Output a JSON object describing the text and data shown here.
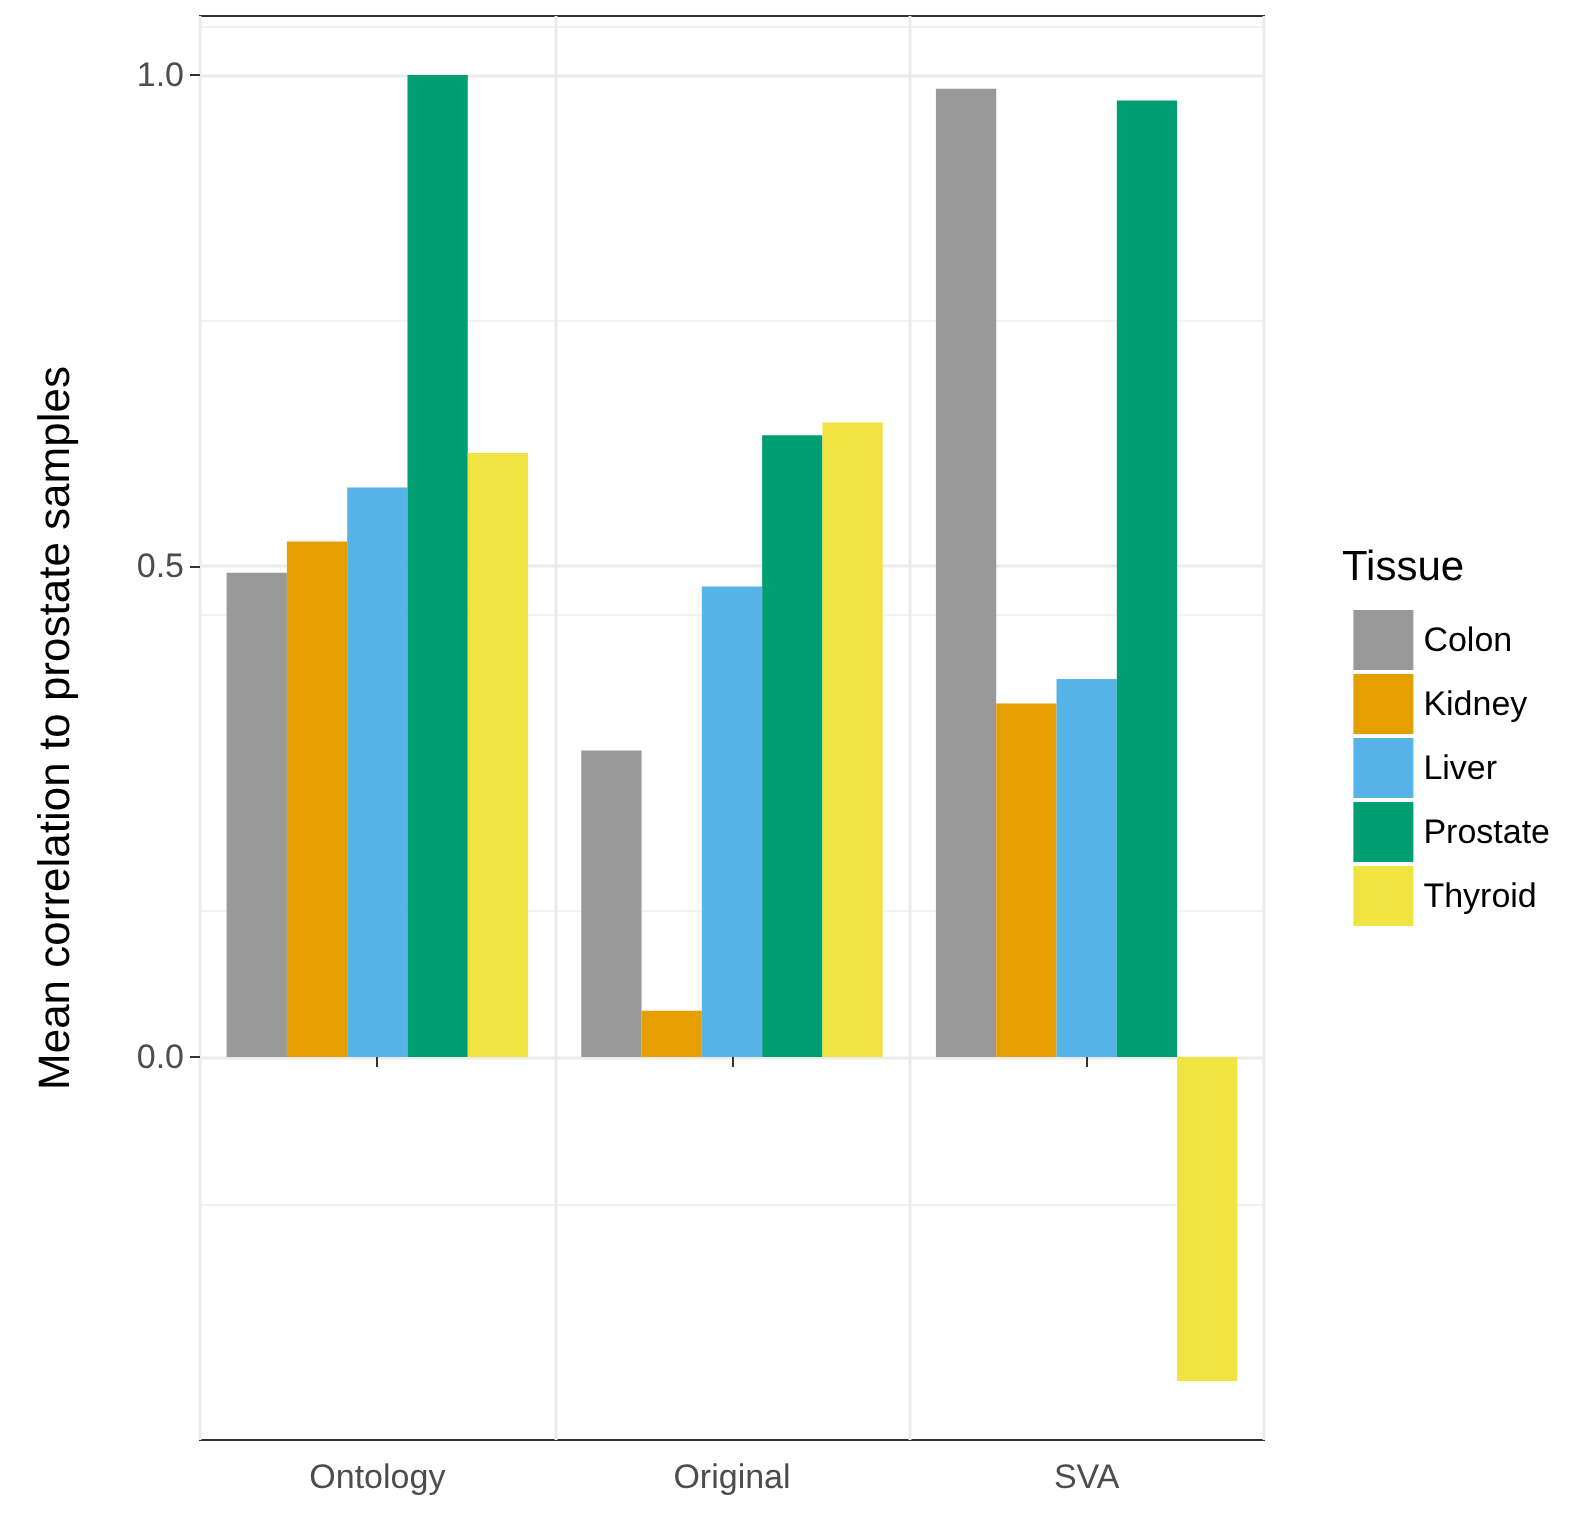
{
  "chart_data": {
    "type": "bar",
    "ylabel": "Mean correlation to prostate samples",
    "legend_title": "Tissue",
    "categories": [
      "Ontology",
      "Original",
      "SVA"
    ],
    "series": [
      {
        "name": "Colon",
        "color": "#999999",
        "values": [
          0.493,
          0.312,
          0.986
        ]
      },
      {
        "name": "Kidney",
        "color": "#e69f00",
        "values": [
          0.525,
          0.047,
          0.36
        ]
      },
      {
        "name": "Liver",
        "color": "#56b4e9",
        "values": [
          0.58,
          0.479,
          0.385
        ]
      },
      {
        "name": "Prostate",
        "color": "#009e73",
        "values": [
          1.0,
          0.633,
          0.974
        ]
      },
      {
        "name": "Thyroid",
        "color": "#f0e442",
        "values": [
          0.615,
          0.646,
          -0.33
        ]
      }
    ],
    "ylim": [
      -0.39,
      1.06
    ],
    "yticks": [
      {
        "value": 0,
        "label": "0.0"
      },
      {
        "value": 0.5,
        "label": "0.5"
      },
      {
        "value": 1,
        "label": "1.0"
      }
    ],
    "grid": true,
    "legend": "right"
  }
}
